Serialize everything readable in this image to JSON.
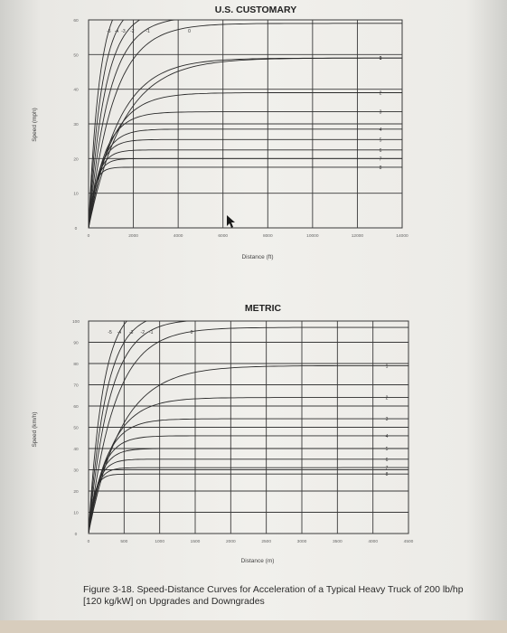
{
  "caption": "Figure 3-18. Speed-Distance Curves for Acceleration of a Typical Heavy Truck of 200 lb/hp [120 kg/kW] on Upgrades and Downgrades",
  "colors": {
    "ink": "#333333",
    "grid": "#3a3a3a",
    "label": "#666666"
  },
  "chart_data": [
    {
      "type": "line",
      "title": "U.S. CUSTOMARY",
      "xlabel": "Distance (ft)",
      "ylabel": "Speed (mph)",
      "xlim": [
        0,
        14000
      ],
      "ylim": [
        0,
        60
      ],
      "xticks": [
        0,
        2000,
        4000,
        6000,
        8000,
        10000,
        12000,
        14000
      ],
      "xtick_labels": [
        "0",
        "2000",
        "4000",
        "6000",
        "8000",
        "10000",
        "12000",
        "14000"
      ],
      "yticks": [
        0,
        10,
        20,
        30,
        40,
        50,
        60
      ],
      "ytick_labels": [
        "0",
        "10",
        "20",
        "30",
        "40",
        "50",
        "60"
      ],
      "grid": true,
      "grade_labels_top": [
        {
          "text": "-5",
          "x": 900
        },
        {
          "text": "-4",
          "x": 1250
        },
        {
          "text": "-3",
          "x": 1550
        },
        {
          "text": "-2",
          "x": 1950
        },
        {
          "text": "-1",
          "x": 2650
        },
        {
          "text": "0",
          "x": 4500
        }
      ],
      "series": [
        {
          "name": "0",
          "terminal": 49,
          "k": 2200
        },
        {
          "name": "1",
          "terminal": 49,
          "k": 1900
        },
        {
          "name": "2",
          "terminal": 39,
          "k": 1400
        },
        {
          "name": "3",
          "terminal": 33.5,
          "k": 1000
        },
        {
          "name": "4",
          "terminal": 28.5,
          "k": 800
        },
        {
          "name": "5",
          "terminal": 25.5,
          "k": 650
        },
        {
          "name": "6",
          "terminal": 22.5,
          "k": 550
        },
        {
          "name": "7",
          "terminal": 20,
          "k": 450
        },
        {
          "name": "8",
          "terminal": 17.5,
          "k": 350
        },
        {
          "name": "",
          "terminal": 59,
          "k": 1600
        },
        {
          "name": "",
          "terminal": 61,
          "k": 1300
        },
        {
          "name": "",
          "terminal": 63,
          "k": 1050
        },
        {
          "name": "",
          "terminal": 65,
          "k": 850
        },
        {
          "name": "",
          "terminal": 68,
          "k": 700
        }
      ]
    },
    {
      "type": "line",
      "title": "METRIC",
      "xlabel": "Distance (m)",
      "ylabel": "Speed (km/h)",
      "xlim": [
        0,
        4500
      ],
      "ylim": [
        0,
        100
      ],
      "xticks": [
        0,
        500,
        1000,
        1500,
        2000,
        2500,
        3000,
        3500,
        4000,
        4500
      ],
      "xtick_labels": [
        "0",
        "500",
        "1000",
        "1500",
        "2000",
        "2500",
        "3000",
        "3500",
        "4000",
        "4500"
      ],
      "yticks": [
        0,
        10,
        20,
        30,
        40,
        50,
        60,
        70,
        80,
        90,
        100
      ],
      "ytick_labels": [
        "0",
        "10",
        "20",
        "30",
        "40",
        "50",
        "60",
        "70",
        "80",
        "90",
        "100"
      ],
      "grid": true,
      "grade_labels_top": [
        {
          "text": "-5",
          "x": 300
        },
        {
          "text": "-4",
          "x": 430
        },
        {
          "text": "-3",
          "x": 600
        },
        {
          "text": "-2",
          "x": 760
        },
        {
          "text": "-1",
          "x": 880
        },
        {
          "text": "0",
          "x": 1450
        }
      ],
      "series": [
        {
          "name": "1",
          "terminal": 79,
          "k": 650
        },
        {
          "name": "2",
          "terminal": 64,
          "k": 450
        },
        {
          "name": "3",
          "terminal": 54,
          "k": 330
        },
        {
          "name": "4",
          "terminal": 46,
          "k": 260
        },
        {
          "name": "5",
          "terminal": 40,
          "k": 210
        },
        {
          "name": "6",
          "terminal": 35,
          "k": 170
        },
        {
          "name": "7",
          "terminal": 31,
          "k": 140
        },
        {
          "name": "8",
          "terminal": 28,
          "k": 110
        },
        {
          "name": "",
          "terminal": 97,
          "k": 520
        },
        {
          "name": "",
          "terminal": 101,
          "k": 420
        },
        {
          "name": "",
          "terminal": 104,
          "k": 350
        },
        {
          "name": "",
          "terminal": 108,
          "k": 290
        }
      ]
    }
  ]
}
